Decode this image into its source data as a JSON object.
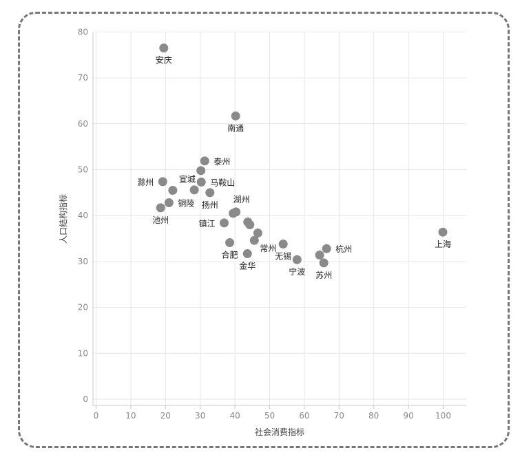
{
  "chart_data": {
    "type": "scatter",
    "xlabel": "社会消费指标",
    "ylabel": "人口结构指标",
    "xlim": [
      0,
      107
    ],
    "ylim": [
      -1,
      81
    ],
    "xticks": [
      0,
      10,
      20,
      30,
      40,
      50,
      60,
      70,
      80,
      90,
      100
    ],
    "yticks": [
      0,
      10,
      20,
      30,
      40,
      50,
      60,
      70,
      80
    ],
    "grid": true,
    "point_color": "#8a8a8a",
    "points": [
      {
        "x": 19.5,
        "y": 76.5,
        "label": "安庆",
        "anchor": "below"
      },
      {
        "x": 40.2,
        "y": 61.7,
        "label": "南通",
        "anchor": "below"
      },
      {
        "x": 31.3,
        "y": 51.9,
        "label": "泰州",
        "anchor": "right"
      },
      {
        "x": 30.2,
        "y": 49.8,
        "label": "",
        "anchor": "none"
      },
      {
        "x": 19.2,
        "y": 47.4,
        "label": "滁州",
        "anchor": "left"
      },
      {
        "x": 22.1,
        "y": 45.5,
        "label": "宣城",
        "anchor": "upper-right"
      },
      {
        "x": 30.3,
        "y": 47.3,
        "label": "马鞍山",
        "anchor": "right"
      },
      {
        "x": 28.3,
        "y": 45.6,
        "label": "",
        "anchor": "none"
      },
      {
        "x": 32.8,
        "y": 45.0,
        "label": "扬州",
        "anchor": "below"
      },
      {
        "x": 21.0,
        "y": 42.8,
        "label": "铜陵",
        "anchor": "right"
      },
      {
        "x": 18.6,
        "y": 41.7,
        "label": "池州",
        "anchor": "below"
      },
      {
        "x": 40.3,
        "y": 40.8,
        "label": "湖州",
        "anchor": "above-right"
      },
      {
        "x": 39.5,
        "y": 40.5,
        "label": "",
        "anchor": "none"
      },
      {
        "x": 36.9,
        "y": 38.4,
        "label": "镇江",
        "anchor": "left"
      },
      {
        "x": 43.7,
        "y": 38.6,
        "label": "",
        "anchor": "none"
      },
      {
        "x": 44.3,
        "y": 38.0,
        "label": "",
        "anchor": "none"
      },
      {
        "x": 46.6,
        "y": 36.2,
        "label": "",
        "anchor": "none"
      },
      {
        "x": 45.6,
        "y": 34.6,
        "label": "常州",
        "anchor": "lower-right"
      },
      {
        "x": 38.5,
        "y": 34.1,
        "label": "合肥",
        "anchor": "below"
      },
      {
        "x": 43.6,
        "y": 31.7,
        "label": "金华",
        "anchor": "below"
      },
      {
        "x": 53.9,
        "y": 33.8,
        "label": "无锡",
        "anchor": "below"
      },
      {
        "x": 57.9,
        "y": 30.4,
        "label": "宁波",
        "anchor": "below"
      },
      {
        "x": 64.4,
        "y": 31.4,
        "label": "",
        "anchor": "none"
      },
      {
        "x": 66.4,
        "y": 32.8,
        "label": "杭州",
        "anchor": "right"
      },
      {
        "x": 65.6,
        "y": 29.7,
        "label": "苏州",
        "anchor": "below"
      },
      {
        "x": 99.9,
        "y": 36.4,
        "label": "上海",
        "anchor": "below"
      }
    ]
  }
}
